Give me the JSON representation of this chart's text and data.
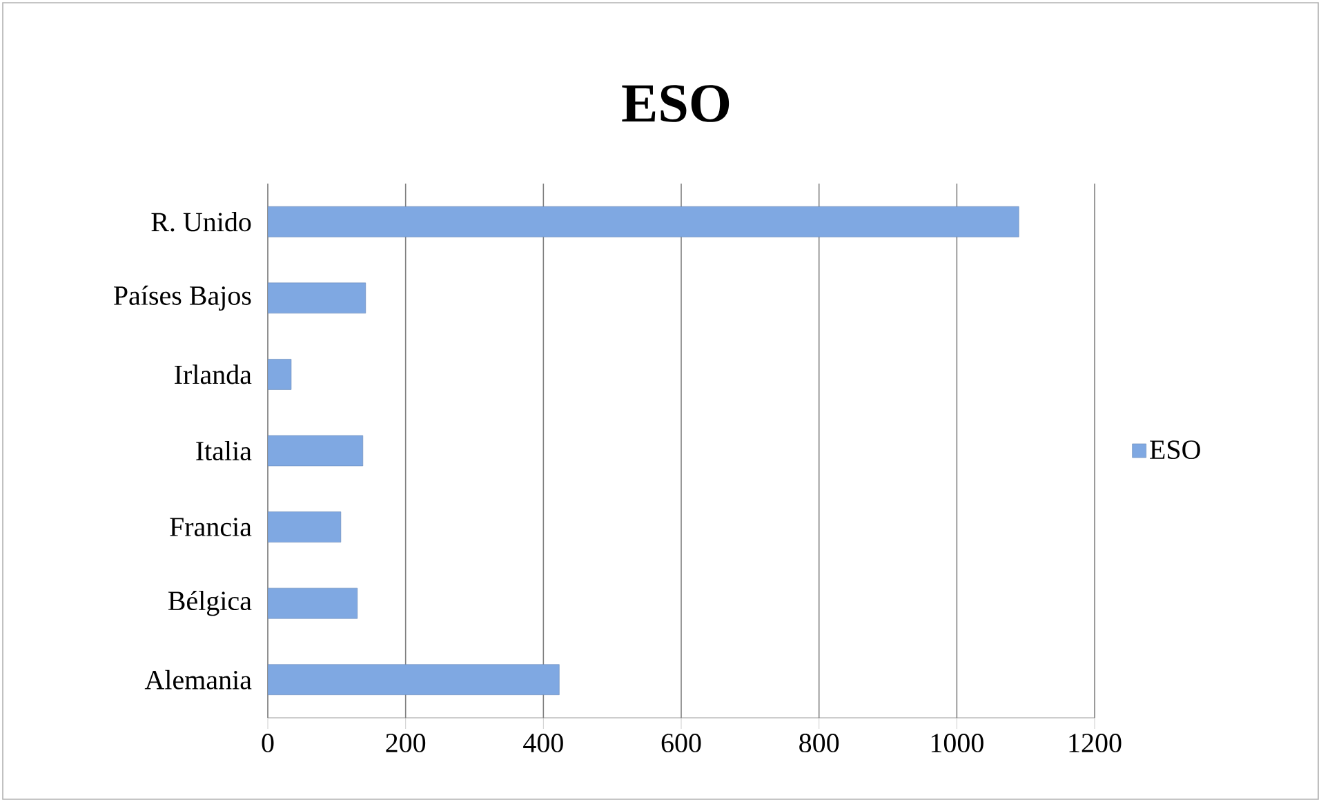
{
  "chart_data": {
    "type": "bar",
    "orientation": "horizontal",
    "title": "ESO",
    "categories": [
      "R. Unido",
      "Países Bajos",
      "Irlanda",
      "Italia",
      "Francia",
      "Bélgica",
      "Alemania"
    ],
    "series": [
      {
        "name": "ESO",
        "color": "#7fa8e2",
        "values": [
          1090,
          142,
          34,
          138,
          106,
          130,
          423
        ]
      }
    ],
    "xlim": [
      0,
      1200
    ],
    "xticks": [
      0,
      200,
      400,
      600,
      800,
      1000,
      1200
    ],
    "grid": "x",
    "legend": "right"
  }
}
